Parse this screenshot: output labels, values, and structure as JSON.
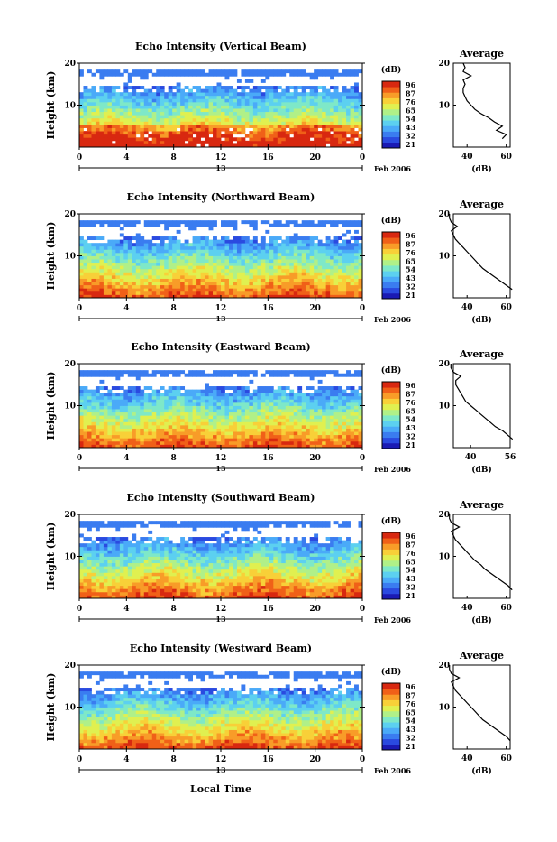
{
  "chart_data": {
    "type": "heatmap",
    "panels": [
      {
        "title": "Echo Intensity (Vertical Beam)",
        "avg_x_ticks": [
          "40",
          "60"
        ],
        "avg_profile": [
          [
            2.0,
            58
          ],
          [
            3.0,
            60
          ],
          [
            4.0,
            55
          ],
          [
            5.0,
            58
          ],
          [
            6.0,
            54
          ],
          [
            7.0,
            51
          ],
          [
            8.0,
            47
          ],
          [
            9.0,
            44
          ],
          [
            10.0,
            42
          ],
          [
            11.0,
            40
          ],
          [
            12.0,
            39
          ],
          [
            13.0,
            38
          ],
          [
            14.0,
            38
          ],
          [
            15.0,
            39
          ],
          [
            16.0,
            38
          ],
          [
            17.0,
            42
          ],
          [
            18.0,
            38
          ],
          [
            19.0,
            39
          ],
          [
            20.0,
            38
          ]
        ]
      },
      {
        "title": "Echo Intensity (Northward Beam)",
        "avg_x_ticks": [
          "40",
          "60"
        ],
        "avg_profile": [
          [
            2.0,
            63
          ],
          [
            3.0,
            60
          ],
          [
            4.0,
            57
          ],
          [
            5.0,
            54
          ],
          [
            6.0,
            51
          ],
          [
            7.0,
            48
          ],
          [
            8.0,
            46
          ],
          [
            9.0,
            44
          ],
          [
            10.0,
            42
          ],
          [
            11.0,
            40
          ],
          [
            12.0,
            38
          ],
          [
            13.0,
            36
          ],
          [
            14.0,
            34
          ],
          [
            15.0,
            33
          ],
          [
            16.0,
            32
          ],
          [
            17.0,
            35
          ],
          [
            18.0,
            32
          ],
          [
            19.0,
            31
          ],
          [
            20.0,
            31
          ]
        ]
      },
      {
        "title": "Echo Intensity (Eastward Beam)",
        "avg_x_ticks": [
          "40",
          "56"
        ],
        "avg_profile": [
          [
            2.0,
            57
          ],
          [
            3.0,
            55
          ],
          [
            4.0,
            53
          ],
          [
            5.0,
            50
          ],
          [
            6.0,
            48
          ],
          [
            7.0,
            46
          ],
          [
            8.0,
            44
          ],
          [
            9.0,
            42
          ],
          [
            10.0,
            40
          ],
          [
            11.0,
            38
          ],
          [
            12.0,
            37
          ],
          [
            13.0,
            36
          ],
          [
            14.0,
            35
          ],
          [
            15.0,
            34
          ],
          [
            16.0,
            34
          ],
          [
            17.0,
            36
          ],
          [
            18.0,
            33
          ],
          [
            19.0,
            32
          ],
          [
            20.0,
            32
          ]
        ]
      },
      {
        "title": "Echo Intensity (Southward Beam)",
        "avg_x_ticks": [
          "40",
          "60"
        ],
        "avg_profile": [
          [
            2.0,
            63
          ],
          [
            3.0,
            61
          ],
          [
            4.0,
            58
          ],
          [
            5.0,
            55
          ],
          [
            6.0,
            52
          ],
          [
            7.0,
            49
          ],
          [
            8.0,
            47
          ],
          [
            9.0,
            44
          ],
          [
            10.0,
            42
          ],
          [
            11.0,
            40
          ],
          [
            12.0,
            38
          ],
          [
            13.0,
            36
          ],
          [
            14.0,
            34
          ],
          [
            15.0,
            33
          ],
          [
            16.0,
            32
          ],
          [
            17.0,
            36
          ],
          [
            18.0,
            32
          ],
          [
            19.0,
            31
          ],
          [
            20.0,
            31
          ]
        ]
      },
      {
        "title": "Echo Intensity (Westward Beam)",
        "avg_x_ticks": [
          "40",
          "60"
        ],
        "avg_profile": [
          [
            2.0,
            62
          ],
          [
            3.0,
            60
          ],
          [
            4.0,
            57
          ],
          [
            5.0,
            54
          ],
          [
            6.0,
            51
          ],
          [
            7.0,
            48
          ],
          [
            8.0,
            46
          ],
          [
            9.0,
            44
          ],
          [
            10.0,
            42
          ],
          [
            11.0,
            40
          ],
          [
            12.0,
            38
          ],
          [
            13.0,
            36
          ],
          [
            14.0,
            34
          ],
          [
            15.0,
            33
          ],
          [
            16.0,
            32
          ],
          [
            17.0,
            36
          ],
          [
            18.0,
            32
          ],
          [
            19.0,
            31
          ],
          [
            20.0,
            31
          ]
        ]
      }
    ],
    "ylabel": "Height (km)",
    "y_ticks": [
      "20",
      "10"
    ],
    "ylim": [
      0,
      20
    ],
    "xlim": [
      0,
      24
    ],
    "x_ticks": [
      "0",
      "4",
      "8",
      "12",
      "16",
      "20",
      "0"
    ],
    "date_label": "13",
    "month_label": "Feb 2006",
    "xlabel": "Local Time",
    "colorbar": {
      "unit": "(dB)",
      "ticks": [
        "96",
        "87",
        "76",
        "65",
        "54",
        "43",
        "32",
        "21"
      ]
    },
    "avg_title": "Average",
    "avg_unit": "(dB)",
    "avg_y_ticks": [
      "20",
      "10"
    ],
    "colors": [
      "#1a1ab4",
      "#2a4ae0",
      "#3a7cf0",
      "#4aaaf8",
      "#5cd0f0",
      "#7ee8c8",
      "#b0f088",
      "#e0f050",
      "#f8d038",
      "#f89c28",
      "#f06018",
      "#d82810"
    ]
  }
}
